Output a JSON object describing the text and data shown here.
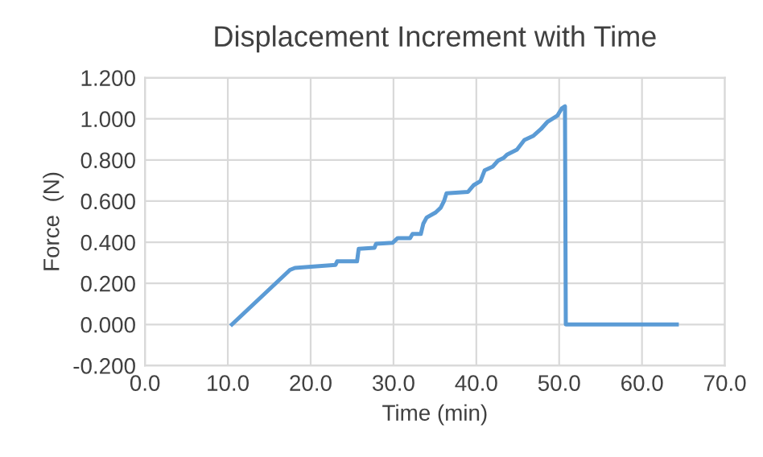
{
  "chart_data": {
    "type": "line",
    "title": "Displacement Increment with Time",
    "xlabel": "Time (min)",
    "ylabel": "Force  (N)",
    "series": [
      {
        "color": "#5b9bd5",
        "x": [
          10.5,
          17.5,
          18.1,
          19.7,
          23.0,
          23.2,
          25.6,
          25.8,
          27.7,
          27.9,
          29.9,
          30.5,
          32.0,
          32.3,
          33.3,
          33.6,
          34.0,
          35.1,
          35.7,
          36.1,
          36.4,
          39.0,
          39.7,
          40.5,
          41.0,
          42.0,
          42.6,
          43.3,
          43.7,
          44.9,
          45.8,
          46.9,
          47.8,
          48.6,
          49.8,
          50.3,
          50.7,
          50.8,
          64.2
        ],
        "values": [
          0,
          0.265,
          0.275,
          0.28,
          0.29,
          0.307,
          0.307,
          0.368,
          0.373,
          0.392,
          0.397,
          0.42,
          0.42,
          0.44,
          0.44,
          0.49,
          0.52,
          0.545,
          0.568,
          0.6,
          0.638,
          0.645,
          0.678,
          0.697,
          0.749,
          0.768,
          0.796,
          0.81,
          0.826,
          0.85,
          0.897,
          0.918,
          0.95,
          0.986,
          1.016,
          1.05,
          1.061,
          0,
          0
        ]
      }
    ],
    "xlim": [
      0,
      70
    ],
    "ylim": [
      -0.2,
      1.2
    ],
    "xticks": [
      {
        "value": 0,
        "label": "0.0"
      },
      {
        "value": 10,
        "label": "10.0"
      },
      {
        "value": 20,
        "label": "20.0"
      },
      {
        "value": 30,
        "label": "30.0"
      },
      {
        "value": 40,
        "label": "40.0"
      },
      {
        "value": 50,
        "label": "50.0"
      },
      {
        "value": 60,
        "label": "60.0"
      },
      {
        "value": 70,
        "label": "70.0"
      }
    ],
    "yticks": [
      {
        "value": -0.2,
        "label": "-0.200"
      },
      {
        "value": 0,
        "label": "0.000"
      },
      {
        "value": 0.2,
        "label": "0.200"
      },
      {
        "value": 0.4,
        "label": "0.400"
      },
      {
        "value": 0.6,
        "label": "0.600"
      },
      {
        "value": 0.8,
        "label": "0.800"
      },
      {
        "value": 1.0,
        "label": "1.000"
      },
      {
        "value": 1.2,
        "label": "1.200"
      }
    ],
    "grid": true,
    "marker": "none",
    "line_style": "solid",
    "legend": false
  }
}
